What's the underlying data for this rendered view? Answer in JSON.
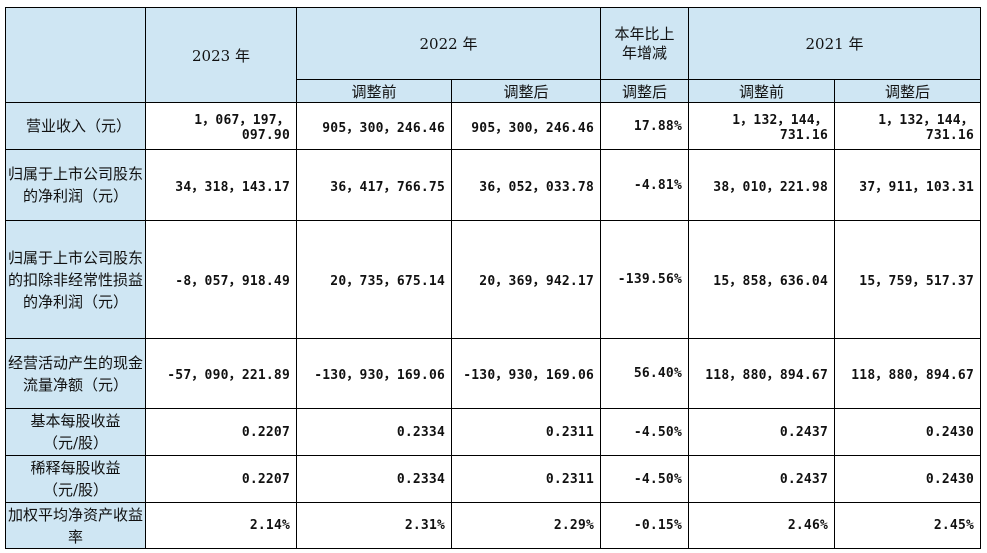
{
  "header": {
    "y2023": "2023 年",
    "y2022": "2022 年",
    "change": "本年比上年增减",
    "y2021": "2021 年",
    "before": "调整前",
    "after": "调整后",
    "after_change": "调整后"
  },
  "rows": [
    {
      "label": "营业收入（元）",
      "v2023": "1，067，197，097.90",
      "v2022_before": "905，300，246.46",
      "v2022_after": "905，300，246.46",
      "change": "17.88%",
      "v2021_before": "1，132，144，731.16",
      "v2021_after": "1，132，144，731.16"
    },
    {
      "label": "归属于上市公司股东的净利润（元）",
      "v2023": "34，318，143.17",
      "v2022_before": "36，417，766.75",
      "v2022_after": "36，052，033.78",
      "change": "-4.81%",
      "v2021_before": "38，010，221.98",
      "v2021_after": "37，911，103.31"
    },
    {
      "label": "归属于上市公司股东的扣除非经常性损益的净利润（元）",
      "v2023": "-8，057，918.49",
      "v2022_before": "20，735，675.14",
      "v2022_after": "20，369，942.17",
      "change": "-139.56%",
      "v2021_before": "15，858，636.04",
      "v2021_after": "15，759，517.37"
    },
    {
      "label": "经营活动产生的现金流量净额（元）",
      "v2023": "-57，090，221.89",
      "v2022_before": "-130，930，169.06",
      "v2022_after": "-130，930，169.06",
      "change": "56.40%",
      "v2021_before": "118，880，894.67",
      "v2021_after": "118，880，894.67"
    },
    {
      "label": "基本每股收益（元/股）",
      "v2023": "0.2207",
      "v2022_before": "0.2334",
      "v2022_after": "0.2311",
      "change": "-4.50%",
      "v2021_before": "0.2437",
      "v2021_after": "0.2430"
    },
    {
      "label": "稀释每股收益（元/股）",
      "v2023": "0.2207",
      "v2022_before": "0.2334",
      "v2022_after": "0.2311",
      "change": "-4.50%",
      "v2021_before": "0.2437",
      "v2021_after": "0.2430"
    },
    {
      "label": "加权平均净资产收益率",
      "v2023": "2.14%",
      "v2022_before": "2.31%",
      "v2022_after": "2.29%",
      "change": "-0.15%",
      "v2021_before": "2.46%",
      "v2021_after": "2.45%"
    }
  ]
}
